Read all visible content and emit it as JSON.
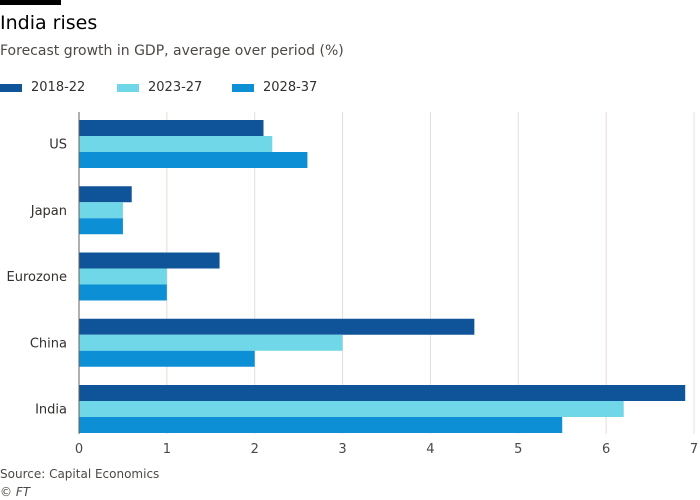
{
  "header": {
    "title": "India rises",
    "subtitle": "Forecast growth in GDP, average over period (%)"
  },
  "chart_data": {
    "type": "bar",
    "orientation": "horizontal",
    "title": "India rises",
    "subtitle": "Forecast growth in GDP, average over period (%)",
    "categories": [
      "US",
      "Japan",
      "Eurozone",
      "China",
      "India"
    ],
    "series": [
      {
        "name": "2018-22",
        "color": "#0f5499",
        "values": [
          2.1,
          0.6,
          1.6,
          4.5,
          6.9
        ]
      },
      {
        "name": "2023-27",
        "color": "#70d7e9",
        "values": [
          2.2,
          0.5,
          1.0,
          3.0,
          6.2
        ]
      },
      {
        "name": "2028-37",
        "color": "#0d8fd6",
        "values": [
          2.6,
          0.5,
          1.0,
          2.0,
          5.5
        ]
      }
    ],
    "xlim": [
      0,
      7
    ],
    "xticks": [
      "0",
      "1",
      "2",
      "3",
      "4",
      "5",
      "6",
      "7"
    ],
    "xlabel": "",
    "ylabel": "",
    "grid": true,
    "legend_position": "top-left"
  },
  "footer": {
    "source": "Source: Capital Economics",
    "credit": "© FT"
  }
}
